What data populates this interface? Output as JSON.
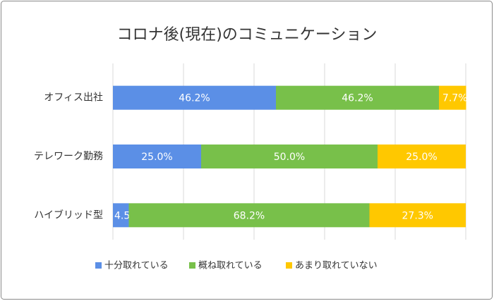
{
  "chart_data": {
    "type": "bar",
    "orientation": "horizontal",
    "stacked": true,
    "title": "コロナ後(現在)のコミュニケーション",
    "categories": [
      "オフィス出社",
      "テレワーク勤務",
      "ハイブリッド型"
    ],
    "series": [
      {
        "name": "十分取れている",
        "color": "#5b8fe6",
        "values": [
          46.2,
          25.0,
          4.5
        ],
        "value_labels": [
          "46.2%",
          "25.0%",
          "4.5%"
        ]
      },
      {
        "name": "概ね取れている",
        "color": "#78c04a",
        "values": [
          46.2,
          50.0,
          68.2
        ],
        "value_labels": [
          "46.2%",
          "50.0%",
          "68.2%"
        ]
      },
      {
        "name": "あまり取れていない",
        "color": "#ffc800",
        "values": [
          7.7,
          25.0,
          27.3
        ],
        "value_labels": [
          "7.7%",
          "25.0%",
          "27.3%"
        ]
      }
    ],
    "xlim": [
      0,
      100
    ],
    "xticks": [
      0,
      20,
      40,
      60,
      80,
      100
    ],
    "grid": true,
    "legend": "bottom"
  }
}
